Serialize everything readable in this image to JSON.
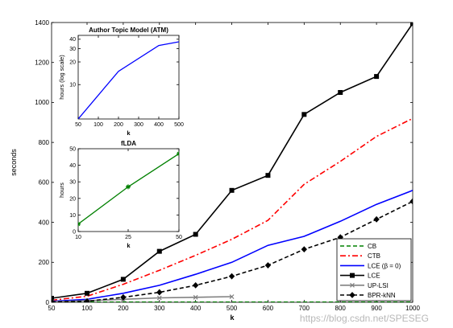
{
  "chart_data": [
    {
      "id": "main",
      "type": "line",
      "xlabel": "k",
      "ylabel": "seconds",
      "xlim": [
        50,
        1000
      ],
      "ylim": [
        0,
        1400
      ],
      "xticks": [
        50,
        100,
        200,
        300,
        400,
        500,
        600,
        700,
        800,
        900,
        1000
      ],
      "yticks": [
        0,
        200,
        400,
        600,
        800,
        1000,
        1200,
        1400
      ],
      "grid": false,
      "legend_position": "bottom-right",
      "series": [
        {
          "name": "CB",
          "color": "#008000",
          "dash": "dashed",
          "marker": "none",
          "x": [
            50,
            100,
            200,
            300,
            400,
            500,
            600,
            700,
            800,
            900,
            1000
          ],
          "y": [
            1,
            1,
            1,
            1,
            1,
            1,
            1,
            1,
            1,
            1,
            1
          ]
        },
        {
          "name": "CTB",
          "color": "#ff0000",
          "dash": "dashdot",
          "marker": "none",
          "x": [
            50,
            100,
            200,
            300,
            400,
            500,
            600,
            700,
            800,
            900,
            1000
          ],
          "y": [
            10,
            30,
            90,
            160,
            235,
            315,
            410,
            590,
            705,
            830,
            920
          ]
        },
        {
          "name": "LCE (β = 0)",
          "color": "#0000ff",
          "dash": "solid",
          "marker": "none",
          "x": [
            50,
            100,
            200,
            300,
            400,
            500,
            600,
            700,
            800,
            900,
            1000
          ],
          "y": [
            5,
            15,
            45,
            85,
            140,
            200,
            285,
            330,
            405,
            490,
            560
          ]
        },
        {
          "name": "LCE",
          "color": "#000000",
          "dash": "solid",
          "marker": "square",
          "x": [
            50,
            100,
            200,
            300,
            400,
            500,
            600,
            700,
            800,
            900,
            1000
          ],
          "y": [
            20,
            45,
            115,
            255,
            340,
            560,
            635,
            940,
            1050,
            1130,
            1395
          ]
        },
        {
          "name": "UP-LSI",
          "color": "#808080",
          "dash": "solid",
          "marker": "x",
          "x": [
            50,
            100,
            200,
            300,
            400,
            500
          ],
          "y": [
            3,
            8,
            15,
            22,
            25,
            28
          ]
        },
        {
          "name": "BPR-kNN",
          "color": "#000000",
          "dash": "dashed",
          "marker": "diamond",
          "x": [
            50,
            100,
            200,
            300,
            400,
            500,
            600,
            700,
            800,
            900,
            1000
          ],
          "y": [
            2,
            5,
            25,
            50,
            85,
            130,
            185,
            265,
            325,
            415,
            505
          ]
        }
      ]
    },
    {
      "id": "inset-atm",
      "type": "line",
      "title": "Author Topic Model (ATM)",
      "xlabel": "k",
      "ylabel": "hours (log scale)",
      "yscale": "log",
      "xlim": [
        50,
        500
      ],
      "ylim": [
        3.5,
        45
      ],
      "xticks": [
        50,
        100,
        200,
        300,
        400,
        500
      ],
      "yticks": [
        10,
        20,
        30,
        40
      ],
      "grid": false,
      "series": [
        {
          "color": "#0000ff",
          "x": [
            50,
            200,
            400,
            500
          ],
          "y": [
            3.5,
            15,
            33,
            37
          ]
        }
      ]
    },
    {
      "id": "inset-flda",
      "type": "line",
      "title": "fLDA",
      "xlabel": "k",
      "ylabel": "hours",
      "xlim": [
        10,
        50
      ],
      "ylim": [
        0,
        50
      ],
      "xticks": [
        10,
        25,
        50
      ],
      "yticks": [
        0,
        10,
        20,
        30,
        40,
        50
      ],
      "grid": false,
      "series": [
        {
          "color": "#008000",
          "marker": "star",
          "x": [
            10,
            25,
            50
          ],
          "y": [
            4.5,
            27,
            47
          ]
        }
      ]
    }
  ],
  "watermark": "https://blog.csdn.net/SPESEG"
}
